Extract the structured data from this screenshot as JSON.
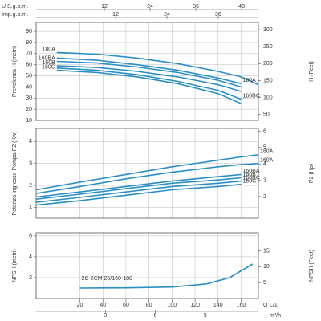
{
  "chart_data": [
    {
      "type": "line",
      "top_axes": [
        {
          "label": "U.S.g.p.m.",
          "lim": [
            -5.9,
            52.4
          ],
          "ticks": [
            12,
            24,
            36,
            48
          ]
        },
        {
          "label": "Imp.g.p.m.",
          "lim": [
            -6.6,
            45.4
          ],
          "ticks": [
            12,
            24,
            36
          ]
        }
      ],
      "ylabel": "Prevalenza H (metri)",
      "y2label": "H (Feet)",
      "xlim": [
        -18,
        175
      ],
      "xticks": [
        20,
        40,
        60,
        80,
        100,
        120,
        140,
        160
      ],
      "ylim": [
        10,
        98
      ],
      "yticks": [
        10,
        20,
        30,
        40,
        50,
        60,
        70,
        80,
        90
      ],
      "y2lim": [
        32.8,
        321.5
      ],
      "y2ticks": [
        50,
        100,
        150,
        200,
        250,
        300
      ],
      "grid": true,
      "x": [
        0,
        35,
        70,
        105,
        140,
        160,
        175
      ],
      "series": [
        {
          "name": "180A",
          "color": "#2a8fc5",
          "label_at": "start",
          "values": [
            71,
            69.5,
            66,
            61,
            54,
            49,
            42
          ]
        },
        {
          "name": "160A",
          "color": "#2a8fc5",
          "label_at": "end",
          "values": [
            66,
            64,
            60,
            55,
            48,
            43,
            null
          ]
        },
        {
          "name": "160BA",
          "color": "#2a8fc5",
          "label_at": "start",
          "values": [
            63,
            61.5,
            58,
            53,
            46,
            40,
            null
          ]
        },
        {
          "name": "160B",
          "color": "#2a8fc5",
          "label_at": "start",
          "values": [
            59,
            57.5,
            54,
            49,
            42,
            36,
            null
          ]
        },
        {
          "name": "160BC",
          "color": "#2a8fc5",
          "label_at": "end",
          "values": [
            57,
            55,
            51,
            45,
            37,
            29,
            null
          ]
        },
        {
          "name": "160C",
          "color": "#2a8fc5",
          "label_at": "start",
          "values": [
            55,
            53,
            49,
            43,
            34,
            25,
            null
          ]
        }
      ]
    },
    {
      "type": "line",
      "ylabel": "Potenza ingresso Pompa P2 (Kw)",
      "y2label": "P2 (Hp)",
      "xlim": [
        -18,
        175
      ],
      "xticks": [
        20,
        40,
        60,
        80,
        100,
        120,
        140,
        160
      ],
      "ylim": [
        0.5,
        4.6
      ],
      "yticks": [
        1,
        2,
        3,
        4
      ],
      "y2lim": [
        0.67,
        6.17
      ],
      "y2ticks": [
        2,
        3,
        4,
        5,
        6
      ],
      "grid": true,
      "x": [
        -18,
        20,
        60,
        100,
        140,
        160,
        175
      ],
      "series": [
        {
          "name": "180A",
          "color": "#2a8fc5",
          "label_at": "end",
          "values": [
            1.8,
            2.15,
            2.5,
            2.85,
            3.15,
            3.3,
            3.4
          ]
        },
        {
          "name": "160A",
          "color": "#2a8fc5",
          "label_at": "end",
          "values": [
            1.63,
            1.95,
            2.3,
            2.6,
            2.85,
            2.95,
            3.0
          ]
        },
        {
          "name": "160BA",
          "color": "#2a8fc5",
          "label_at": "end",
          "values": [
            1.47,
            1.7,
            1.95,
            2.2,
            2.4,
            2.5,
            null
          ]
        },
        {
          "name": "160B",
          "color": "#2a8fc5",
          "label_at": "end",
          "values": [
            1.37,
            1.6,
            1.85,
            2.1,
            2.25,
            2.35,
            null
          ]
        },
        {
          "name": "160BC",
          "color": "#2a8fc5",
          "label_at": "end",
          "values": [
            1.23,
            1.45,
            1.7,
            1.95,
            2.1,
            2.2,
            null
          ]
        },
        {
          "name": "160C",
          "color": "#2a8fc5",
          "label_at": "end",
          "values": [
            1.1,
            1.3,
            1.55,
            1.8,
            1.95,
            2.05,
            null
          ]
        }
      ]
    },
    {
      "type": "line",
      "ylabel": "NPSH (metri)",
      "y2label": "NPSH (Feet)",
      "annotation": "2C-2CM 25/160-180",
      "xlim": [
        -18,
        175
      ],
      "xticks": [
        20,
        40,
        60,
        80,
        100,
        120,
        140,
        160
      ],
      "ylim": [
        0,
        6.3
      ],
      "yticks": [
        2,
        4,
        6
      ],
      "y2lim": [
        0,
        20.7
      ],
      "y2ticks": [
        5,
        10,
        15
      ],
      "grid": true,
      "x": [
        20,
        60,
        100,
        130,
        150,
        170
      ],
      "series": [
        {
          "name": "NPSH",
          "color": "#2a8fc5",
          "values": [
            1.0,
            1.02,
            1.1,
            1.4,
            2.0,
            3.3
          ]
        }
      ],
      "bottom_axes": [
        {
          "label": "L/1'",
          "lim": [
            -18,
            175
          ],
          "ticks": [
            20,
            40,
            60,
            80,
            100,
            120,
            140,
            160
          ]
        },
        {
          "label": "m³/h",
          "lim": [
            -1.16,
            12.2
          ],
          "ticks": [
            3,
            6,
            9
          ]
        }
      ],
      "xlabel": "Q"
    }
  ]
}
